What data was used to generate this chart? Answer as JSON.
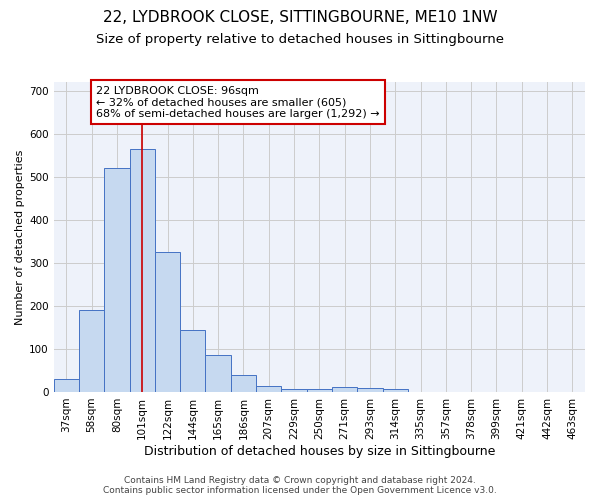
{
  "title": "22, LYDBROOK CLOSE, SITTINGBOURNE, ME10 1NW",
  "subtitle": "Size of property relative to detached houses in Sittingbourne",
  "xlabel": "Distribution of detached houses by size in Sittingbourne",
  "ylabel": "Number of detached properties",
  "categories": [
    "37sqm",
    "58sqm",
    "80sqm",
    "101sqm",
    "122sqm",
    "144sqm",
    "165sqm",
    "186sqm",
    "207sqm",
    "229sqm",
    "250sqm",
    "271sqm",
    "293sqm",
    "314sqm",
    "335sqm",
    "357sqm",
    "378sqm",
    "399sqm",
    "421sqm",
    "442sqm",
    "463sqm"
  ],
  "values": [
    30,
    190,
    520,
    565,
    325,
    145,
    85,
    40,
    13,
    8,
    8,
    12,
    10,
    7,
    0,
    0,
    0,
    0,
    0,
    0,
    0
  ],
  "bar_color": "#c6d9f0",
  "bar_edge_color": "#4472c4",
  "bar_width": 1.0,
  "vline_color": "#cc0000",
  "annotation_text": "22 LYDBROOK CLOSE: 96sqm\n← 32% of detached houses are smaller (605)\n68% of semi-detached houses are larger (1,292) →",
  "annotation_box_color": "#ffffff",
  "annotation_box_edge": "#cc0000",
  "ylim": [
    0,
    720
  ],
  "yticks": [
    0,
    100,
    200,
    300,
    400,
    500,
    600,
    700
  ],
  "grid_color": "#cccccc",
  "bg_color": "#eef2fa",
  "footer": "Contains HM Land Registry data © Crown copyright and database right 2024.\nContains public sector information licensed under the Open Government Licence v3.0.",
  "title_fontsize": 11,
  "subtitle_fontsize": 9.5,
  "xlabel_fontsize": 9,
  "ylabel_fontsize": 8,
  "tick_fontsize": 7.5,
  "footer_fontsize": 6.5,
  "annotation_fontsize": 8
}
